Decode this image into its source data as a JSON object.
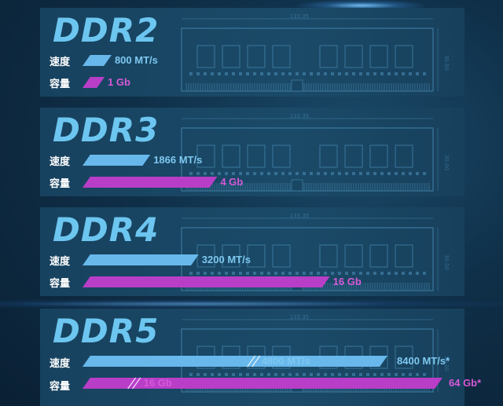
{
  "labels": {
    "speed": "速度",
    "capacity": "容量"
  },
  "module_dims": {
    "width": "133.35",
    "height": "30.00"
  },
  "colors": {
    "speed_bar": "#68b8ec",
    "capacity_bar": "#b83ec8",
    "title": "#6cc6f0",
    "panel": "#18445f"
  },
  "chart_data": {
    "type": "bar",
    "orientation": "horizontal",
    "categories": [
      "DDR2",
      "DDR3",
      "DDR4",
      "DDR5"
    ],
    "series": [
      {
        "name": "速度",
        "unit": "MT/s",
        "values": [
          800,
          1866,
          3200,
          8400
        ],
        "labels": [
          "800 MT/s",
          "1866 MT/s",
          "3200 MT/s",
          "8400 MT/s*"
        ],
        "start_values": [
          null,
          null,
          null,
          4800
        ],
        "start_labels": [
          "",
          "",
          "",
          "4800 MT/s"
        ]
      },
      {
        "name": "容量",
        "unit": "Gb",
        "values": [
          1,
          4,
          16,
          64
        ],
        "labels": [
          "1 Gb",
          "4 Gb",
          "16 Gb",
          "64 Gb*"
        ],
        "start_values": [
          null,
          null,
          null,
          16
        ],
        "start_labels": [
          "",
          "",
          "",
          "16 Gb"
        ]
      }
    ]
  }
}
